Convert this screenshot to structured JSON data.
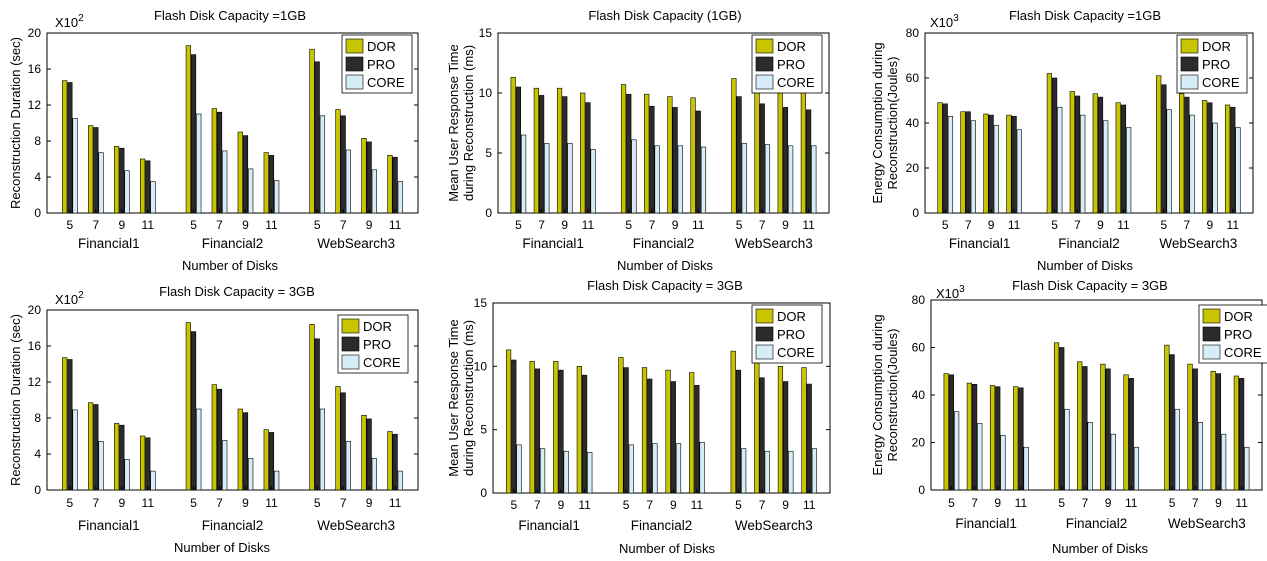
{
  "colors": {
    "DOR": "#c7c400",
    "PRO": "#2b2b2b",
    "CORE": "#d6ecf7"
  },
  "chart_data": [
    {
      "type": "bar",
      "title": "Flash Disk Capacity =1GB",
      "ylabel": "Reconstruction Duration (sec)",
      "xlabel": "Number of Disks",
      "multiplier_base": "X10",
      "multiplier_exp": "2",
      "ylim": [
        0,
        20
      ],
      "yticks": [
        "0",
        "4",
        "8",
        "12",
        "16",
        "20"
      ],
      "groups": [
        "Financial1",
        "Financial2",
        "WebSearch3"
      ],
      "categories": [
        "5",
        "7",
        "9",
        "11"
      ],
      "legend_position": "top-right",
      "grid": false,
      "series": [
        {
          "name": "DOR",
          "values": [
            [
              14.7,
              9.7,
              7.4,
              6.0
            ],
            [
              18.6,
              11.6,
              9.0,
              6.7
            ],
            [
              18.2,
              11.5,
              8.3,
              6.4
            ]
          ]
        },
        {
          "name": "PRO",
          "values": [
            [
              14.5,
              9.5,
              7.2,
              5.8
            ],
            [
              17.6,
              11.2,
              8.6,
              6.4
            ],
            [
              16.8,
              10.8,
              7.9,
              6.2
            ]
          ]
        },
        {
          "name": "CORE",
          "values": [
            [
              10.5,
              6.7,
              4.7,
              3.5
            ],
            [
              11.0,
              6.9,
              4.9,
              3.6
            ],
            [
              10.8,
              7.0,
              4.8,
              3.5
            ]
          ]
        }
      ]
    },
    {
      "type": "bar",
      "title": "Flash Disk Capacity (1GB)",
      "ylabel": "Mean User Response Time during Reconstruction (ms)",
      "ylabel_lines": [
        "Mean User Response Time",
        "during Reconstruction (ms)"
      ],
      "xlabel": "Number of Disks",
      "ylim": [
        0,
        15
      ],
      "yticks": [
        "0",
        "5",
        "10",
        "15"
      ],
      "groups": [
        "Financial1",
        "Financial2",
        "WebSearch3"
      ],
      "categories": [
        "5",
        "7",
        "9",
        "11"
      ],
      "legend_position": "top-right",
      "grid": false,
      "series": [
        {
          "name": "DOR",
          "values": [
            [
              11.3,
              10.4,
              10.4,
              10.0
            ],
            [
              10.7,
              9.9,
              9.7,
              9.6
            ],
            [
              11.2,
              10.3,
              10.0,
              10.0
            ]
          ]
        },
        {
          "name": "PRO",
          "values": [
            [
              10.5,
              9.8,
              9.7,
              9.2
            ],
            [
              9.9,
              8.9,
              8.8,
              8.5
            ],
            [
              9.7,
              9.1,
              8.8,
              8.6
            ]
          ]
        },
        {
          "name": "CORE",
          "values": [
            [
              6.5,
              5.8,
              5.8,
              5.3
            ],
            [
              6.1,
              5.6,
              5.6,
              5.5
            ],
            [
              5.8,
              5.7,
              5.6,
              5.6
            ]
          ]
        }
      ]
    },
    {
      "type": "bar",
      "title": "Flash Disk Capacity =1GB",
      "ylabel": "Energy Consumption during Reconstruction(Joules)",
      "ylabel_lines": [
        "Energy Consumption during",
        "Reconstruction(Joules)"
      ],
      "xlabel": "Number of Disks",
      "multiplier_base": "X10",
      "multiplier_exp": "3",
      "ylim": [
        0,
        80
      ],
      "yticks": [
        "0",
        "20",
        "40",
        "60",
        "80"
      ],
      "groups": [
        "Financial1",
        "Financial2",
        "WebSearch3"
      ],
      "categories": [
        "5",
        "7",
        "9",
        "11"
      ],
      "legend_position": "top-right",
      "grid": false,
      "series": [
        {
          "name": "DOR",
          "values": [
            [
              49,
              45,
              44,
              43.5
            ],
            [
              62,
              54,
              53,
              49
            ],
            [
              61,
              53,
              50,
              48
            ]
          ]
        },
        {
          "name": "PRO",
          "values": [
            [
              48.5,
              45,
              43.5,
              43
            ],
            [
              60,
              52,
              51.5,
              48
            ],
            [
              57,
              51.5,
              49,
              47
            ]
          ]
        },
        {
          "name": "CORE",
          "values": [
            [
              43,
              41,
              39,
              37
            ],
            [
              47,
              43.5,
              41,
              38
            ],
            [
              46,
              43.5,
              40,
              38
            ]
          ]
        }
      ]
    },
    {
      "type": "bar",
      "title": "Flash Disk Capacity = 3GB",
      "ylabel": "Reconstruction Duration (sec)",
      "xlabel": "Number of Disks",
      "multiplier_base": "X10",
      "multiplier_exp": "2",
      "ylim": [
        0,
        20
      ],
      "yticks": [
        "0",
        "4",
        "8",
        "12",
        "16",
        "20"
      ],
      "groups": [
        "Financial1",
        "Financial2",
        "WebSearch3"
      ],
      "categories": [
        "5",
        "7",
        "9",
        "11"
      ],
      "legend_position": "top-right",
      "grid": false,
      "series": [
        {
          "name": "DOR",
          "values": [
            [
              14.7,
              9.7,
              7.4,
              6.0
            ],
            [
              18.6,
              11.7,
              9.0,
              6.7
            ],
            [
              18.4,
              11.5,
              8.3,
              6.5
            ]
          ]
        },
        {
          "name": "PRO",
          "values": [
            [
              14.5,
              9.5,
              7.2,
              5.8
            ],
            [
              17.6,
              11.2,
              8.6,
              6.4
            ],
            [
              16.8,
              10.8,
              7.9,
              6.2
            ]
          ]
        },
        {
          "name": "CORE",
          "values": [
            [
              8.9,
              5.4,
              3.4,
              2.1
            ],
            [
              9.0,
              5.5,
              3.5,
              2.1
            ],
            [
              9.0,
              5.4,
              3.5,
              2.1
            ]
          ]
        }
      ]
    },
    {
      "type": "bar",
      "title": "Flash Disk Capacity = 3GB",
      "ylabel": "Mean User Response Time during Reconstruction (ms)",
      "ylabel_lines": [
        "Mean User Response Time",
        "during Reconstruction (ms)"
      ],
      "xlabel": "Number of Disks",
      "ylim": [
        0,
        15
      ],
      "yticks": [
        "0",
        "5",
        "10",
        "15"
      ],
      "groups": [
        "Financial1",
        "Financial2",
        "WebSearch3"
      ],
      "categories": [
        "5",
        "7",
        "9",
        "11"
      ],
      "legend_position": "top-right",
      "grid": false,
      "series": [
        {
          "name": "DOR",
          "values": [
            [
              11.3,
              10.4,
              10.4,
              10.0
            ],
            [
              10.7,
              9.9,
              9.7,
              9.5
            ],
            [
              11.2,
              10.3,
              10.0,
              9.9
            ]
          ]
        },
        {
          "name": "PRO",
          "values": [
            [
              10.5,
              9.8,
              9.7,
              9.3
            ],
            [
              9.9,
              9.0,
              8.8,
              8.5
            ],
            [
              9.7,
              9.1,
              8.8,
              8.6
            ]
          ]
        },
        {
          "name": "CORE",
          "values": [
            [
              3.8,
              3.5,
              3.3,
              3.2
            ],
            [
              3.8,
              3.9,
              3.9,
              4.0
            ],
            [
              3.5,
              3.3,
              3.3,
              3.5
            ]
          ]
        }
      ]
    },
    {
      "type": "bar",
      "title": "Flash Disk Capacity = 3GB",
      "ylabel": "Energy Consumption during Reconstruction(Joules)",
      "ylabel_lines": [
        "Energy Consumption during",
        "Reconstruction(Joules)"
      ],
      "xlabel": "Number of Disks",
      "multiplier_base": "X10",
      "multiplier_exp": "3",
      "ylim": [
        0,
        80
      ],
      "yticks": [
        "0",
        "20",
        "40",
        "60",
        "80"
      ],
      "groups": [
        "Financial1",
        "Financial2",
        "WebSearch3"
      ],
      "categories": [
        "5",
        "7",
        "9",
        "11"
      ],
      "legend_position": "top-right",
      "grid": false,
      "series": [
        {
          "name": "DOR",
          "values": [
            [
              49,
              45,
              44,
              43.5
            ],
            [
              62,
              54,
              53,
              48.5
            ],
            [
              61,
              53,
              50,
              48
            ]
          ]
        },
        {
          "name": "PRO",
          "values": [
            [
              48.5,
              44.5,
              43.5,
              43
            ],
            [
              60,
              52,
              51,
              47
            ],
            [
              57,
              51,
              49,
              47
            ]
          ]
        },
        {
          "name": "CORE",
          "values": [
            [
              33,
              28,
              23,
              18
            ],
            [
              34,
              28.5,
              23.5,
              18
            ],
            [
              34,
              28.5,
              23.5,
              18
            ]
          ]
        }
      ]
    }
  ]
}
